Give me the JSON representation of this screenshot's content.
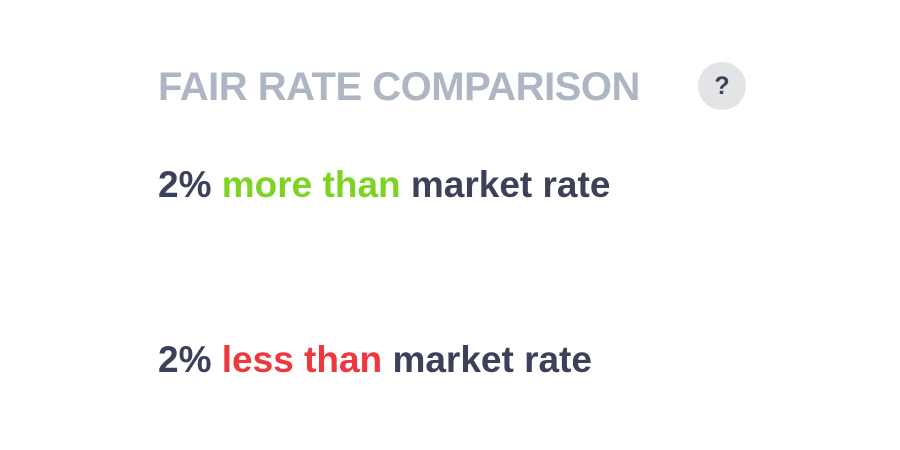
{
  "header": {
    "title": "FAIR RATE COMPARISON",
    "help_label": "?"
  },
  "rates": {
    "higher": {
      "percent": "2%",
      "qualifier": "more than",
      "suffix": "market rate"
    },
    "lower": {
      "percent": "2%",
      "qualifier": "less than",
      "suffix": "market rate"
    }
  },
  "colors": {
    "title": "#aeb6c4",
    "text": "#3c4058",
    "positive": "#7ed321",
    "negative": "#f0373d",
    "help_bg": "#e3e4e6"
  }
}
